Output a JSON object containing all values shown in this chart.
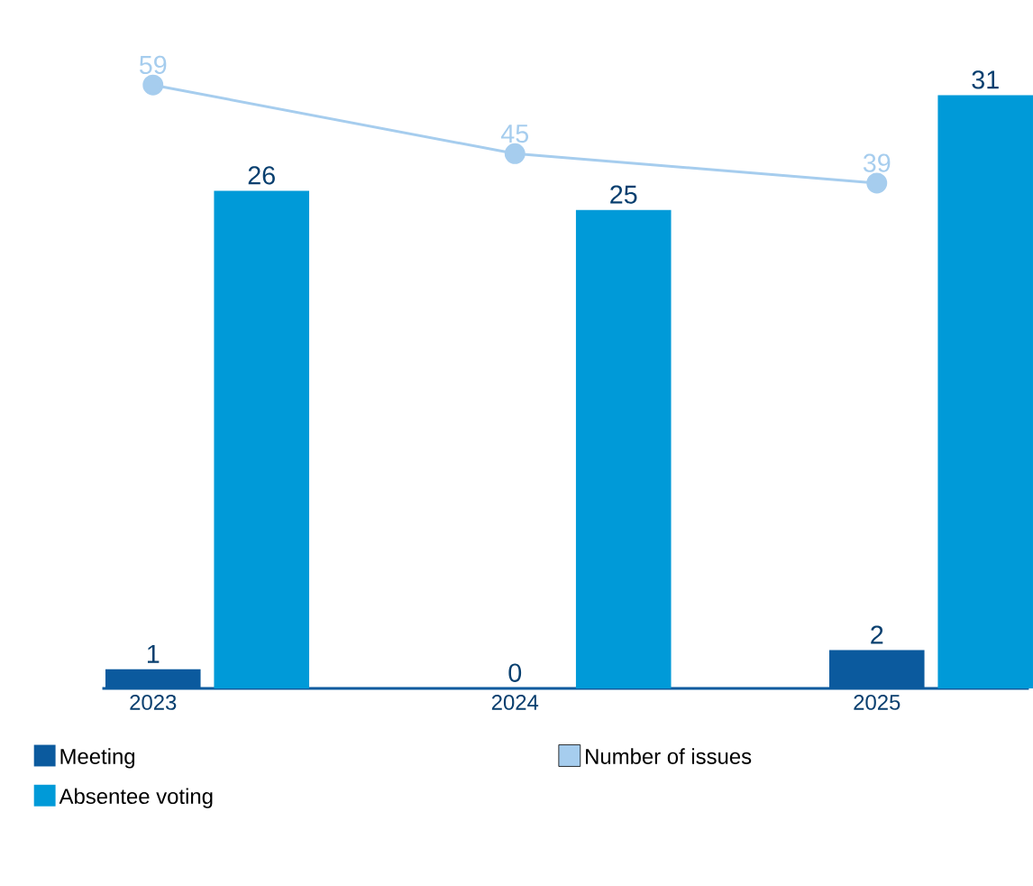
{
  "chart_data": {
    "type": "bar",
    "categories": [
      "2023",
      "2024",
      "2025"
    ],
    "series": [
      {
        "name": "Meeting",
        "color": "#0b5a9e",
        "values": [
          1,
          0,
          2
        ]
      },
      {
        "name": "Absentee voting",
        "color": "#009ad8",
        "values": [
          26,
          25,
          31
        ]
      },
      {
        "name": "Number of issues",
        "type": "line",
        "axis": "y2",
        "color": "#a6cdee",
        "values": [
          59,
          45,
          39
        ]
      }
    ],
    "data_labels": true,
    "marker": "circle",
    "line_style": "solid",
    "legend": "bottom"
  }
}
